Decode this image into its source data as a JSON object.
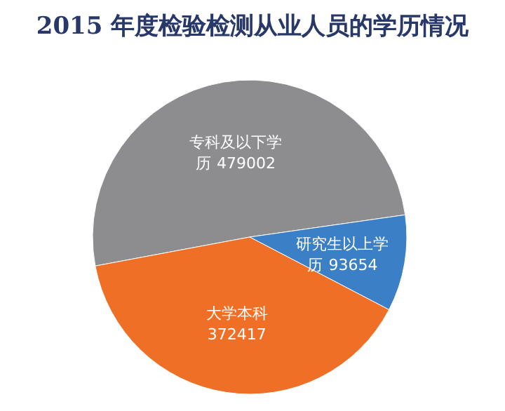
{
  "chart_data": {
    "type": "pie",
    "title": "2015 年度检验检测从业人员的学历情况",
    "categories": [
      "专科及以下学历",
      "研究生以上学历",
      "大学本科"
    ],
    "values": [
      479002,
      93654,
      372417
    ],
    "colors": [
      "#8d8d90",
      "#3b80c6",
      "#f06f27"
    ],
    "data_labels": true
  }
}
